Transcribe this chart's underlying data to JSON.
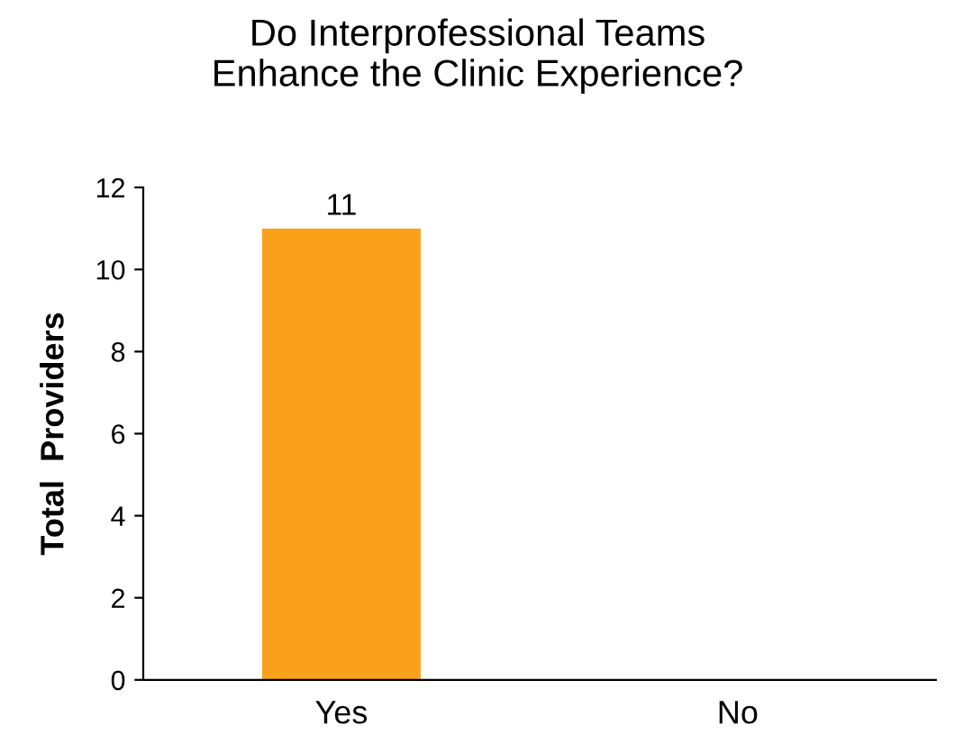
{
  "chart_data": {
    "type": "bar",
    "title": "Do Interprofessional Teams\nEnhance the Clinic Experience?",
    "ylabel": "Total  Providers",
    "categories": [
      "Yes",
      "No"
    ],
    "values": [
      11,
      0
    ],
    "value_labels": [
      "11",
      null
    ],
    "color": "#f9a11b",
    "ylim": [
      0,
      12
    ],
    "yticks": [
      0,
      2,
      4,
      6,
      8,
      10,
      12
    ],
    "grid": false,
    "legend": false
  }
}
